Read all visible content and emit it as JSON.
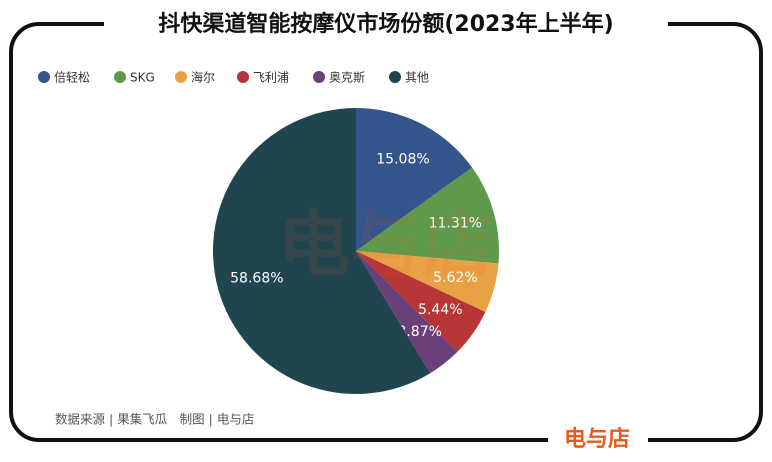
{
  "chart_data": {
    "type": "pie",
    "title": "抖快渠道智能按摩仪市场份额(2023年上半年)",
    "categories": [
      "倍轻松",
      "SKG",
      "海尔",
      "飞利浦",
      "奥克斯",
      "其他"
    ],
    "values": [
      15.08,
      11.31,
      5.62,
      5.44,
      3.87,
      58.68
    ],
    "value_labels": [
      "15.08%",
      "11.31%",
      "5.62%",
      "5.44%",
      "3.87%",
      "58.68%"
    ],
    "colors": [
      "#34558b",
      "#5f9a4c",
      "#e8a245",
      "#b83535",
      "#6b3f7a",
      "#21454f"
    ],
    "legend": "top-left",
    "source": "数据来源 | 果集飞瓜　制图 | 电与店",
    "watermark": "电与店",
    "brand": "电与店"
  }
}
